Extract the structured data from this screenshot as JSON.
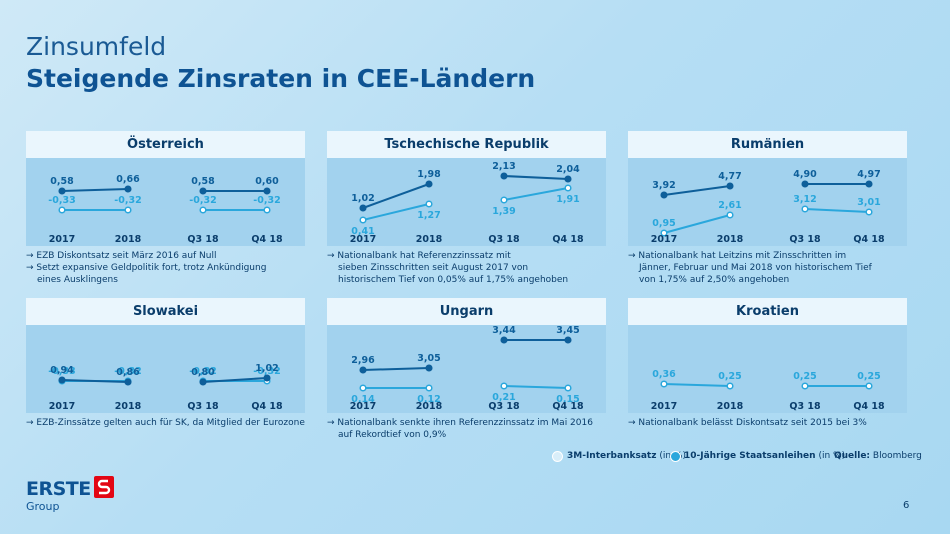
{
  "header": {
    "section": "Zinsumfeld",
    "title": "Steigende Zinsraten in CEE-Ländern"
  },
  "colors": {
    "dark_series": "#0e5f9a",
    "light_series": "#2aa7dc",
    "panel_bg": "#a2d2ee",
    "title_bg": "#eaf6fd"
  },
  "x_labels": [
    "2017",
    "2018",
    "Q3 18",
    "Q4 18"
  ],
  "panels": [
    {
      "title": "Österreich",
      "dark": [
        "0,58",
        "0,66",
        "0,58",
        "0,60"
      ],
      "light": [
        "-0,33",
        "-0,32",
        "-0,32",
        "-0,32"
      ],
      "notes": [
        "→ EZB Diskontsatz seit März 2016 auf Null",
        "→ Setzt expansive Geldpolitik fort, trotz Ankündigung",
        "eines Ausklingens"
      ]
    },
    {
      "title": "Tschechische Republik",
      "dark": [
        "1,02",
        "1,98",
        "2,13",
        "2,04"
      ],
      "light": [
        "0,41",
        "1,27",
        "1,39",
        "1,91"
      ],
      "notes": [
        "→ Nationalbank hat Referenzzinssatz mit",
        "sieben Zinsschritten seit August 2017 von",
        "historischem Tief von 0,05% auf 1,75% angehoben"
      ]
    },
    {
      "title": "Rumänien",
      "dark": [
        "3,92",
        "4,77",
        "4,90",
        "4,97"
      ],
      "light": [
        "0,95",
        "2,61",
        "3,12",
        "3,01"
      ],
      "notes": [
        "→ Nationalbank hat Leitzins mit Zinsschritten im",
        "Jänner, Februar und Mai 2018 von historischem Tief",
        "von 1,75% auf 2,50% angehoben"
      ]
    },
    {
      "title": "Slowakei",
      "dark": [
        "0,94",
        "0,86",
        "0,80",
        "1,02"
      ],
      "light": [
        "-0,33",
        "-0,32",
        "-0,32",
        "-0,32"
      ],
      "notes": [
        "→ EZB-Zinssätze gelten auch für SK, da Mitglied der Eurozone"
      ]
    },
    {
      "title": "Ungarn",
      "dark": [
        "2,96",
        "3,05",
        "3,44",
        "3,45"
      ],
      "light": [
        "0,14",
        "0,12",
        "0,21",
        "0,15"
      ],
      "notes": [
        "→ Nationalbank senkte ihren Referenzzinssatz im Mai 2016",
        "auf Rekordtief von 0,9%"
      ]
    },
    {
      "title": "Kroatien",
      "dark": [],
      "light": [
        "0,36",
        "0,25",
        "0,25",
        "0,25"
      ],
      "notes": [
        "→ Nationalbank belässt Diskontsatz seit 2015 bei 3%"
      ]
    }
  ],
  "legend": {
    "item1": "3M-Interbanksatz",
    "item1_unit": "(in %)",
    "item2": "10-Jährige Staatsanleihen",
    "item2_unit": "(in %)",
    "source_label": "Quelle:",
    "source_value": "Bloomberg"
  },
  "logo": {
    "name": "ERSTE",
    "sub": "Group"
  },
  "page_number": "6"
}
